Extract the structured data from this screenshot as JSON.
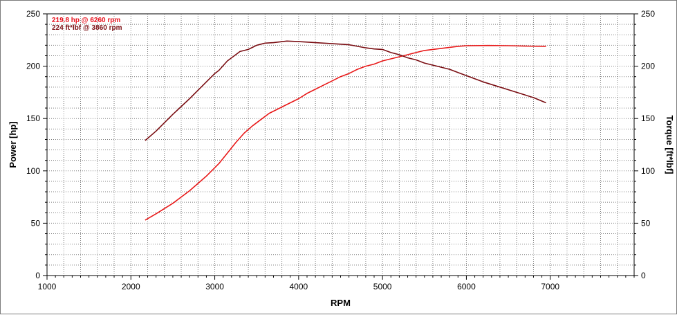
{
  "chart_data": {
    "type": "line",
    "xlabel": "RPM",
    "ylabel_left": "Power [hp]",
    "ylabel_right": "Torque [ft*lbf]",
    "xlim": [
      1000,
      8000
    ],
    "ylim_left": [
      0,
      250
    ],
    "ylim_right": [
      0,
      250
    ],
    "x_ticks": [
      1000,
      2000,
      3000,
      4000,
      5000,
      6000,
      7000
    ],
    "y_ticks": [
      0,
      50,
      100,
      150,
      200,
      250
    ],
    "grid": true,
    "annotations": [
      {
        "text": "219.8 hp @ 6260 rpm",
        "color": "#e8101c"
      },
      {
        "text": "224 ft*lbf @ 3860 rpm",
        "color": "#7a0d12"
      }
    ],
    "series": [
      {
        "key": "power",
        "color": "#e81818",
        "axis": "left",
        "points": [
          [
            2170,
            53
          ],
          [
            2300,
            59
          ],
          [
            2500,
            69
          ],
          [
            2700,
            81
          ],
          [
            2900,
            95
          ],
          [
            3050,
            107
          ],
          [
            3150,
            117
          ],
          [
            3250,
            127
          ],
          [
            3350,
            136
          ],
          [
            3450,
            143
          ],
          [
            3550,
            149
          ],
          [
            3650,
            155
          ],
          [
            3750,
            159
          ],
          [
            3850,
            163
          ],
          [
            4000,
            169
          ],
          [
            4100,
            174
          ],
          [
            4200,
            178
          ],
          [
            4300,
            182
          ],
          [
            4400,
            186
          ],
          [
            4500,
            190
          ],
          [
            4600,
            193
          ],
          [
            4700,
            197
          ],
          [
            4800,
            200
          ],
          [
            4900,
            202
          ],
          [
            5000,
            205
          ],
          [
            5100,
            207
          ],
          [
            5200,
            209
          ],
          [
            5300,
            211
          ],
          [
            5400,
            213
          ],
          [
            5500,
            215
          ],
          [
            5600,
            216
          ],
          [
            5700,
            217
          ],
          [
            5800,
            218
          ],
          [
            5900,
            219
          ],
          [
            6000,
            219.5
          ],
          [
            6260,
            219.8
          ],
          [
            6500,
            219.6
          ],
          [
            6700,
            219.2
          ],
          [
            6950,
            219
          ]
        ]
      },
      {
        "key": "torque",
        "color": "#7a0d12",
        "axis": "right",
        "points": [
          [
            2170,
            129
          ],
          [
            2300,
            138
          ],
          [
            2500,
            154
          ],
          [
            2700,
            169
          ],
          [
            2900,
            185
          ],
          [
            3000,
            193
          ],
          [
            3050,
            196
          ],
          [
            3150,
            205
          ],
          [
            3250,
            211
          ],
          [
            3300,
            214
          ],
          [
            3400,
            216
          ],
          [
            3500,
            220
          ],
          [
            3600,
            222
          ],
          [
            3700,
            222.5
          ],
          [
            3860,
            224
          ],
          [
            4000,
            223.5
          ],
          [
            4100,
            223
          ],
          [
            4200,
            222.5
          ],
          [
            4300,
            222
          ],
          [
            4400,
            221.5
          ],
          [
            4500,
            221
          ],
          [
            4600,
            220.5
          ],
          [
            4700,
            219
          ],
          [
            4800,
            217.5
          ],
          [
            4900,
            216.5
          ],
          [
            5000,
            216
          ],
          [
            5100,
            213
          ],
          [
            5200,
            211
          ],
          [
            5300,
            208
          ],
          [
            5400,
            206
          ],
          [
            5500,
            203
          ],
          [
            5600,
            201
          ],
          [
            5700,
            199
          ],
          [
            5800,
            197
          ],
          [
            5900,
            194
          ],
          [
            6000,
            191
          ],
          [
            6200,
            185
          ],
          [
            6400,
            180
          ],
          [
            6600,
            175
          ],
          [
            6800,
            170
          ],
          [
            6950,
            165
          ]
        ]
      }
    ]
  }
}
